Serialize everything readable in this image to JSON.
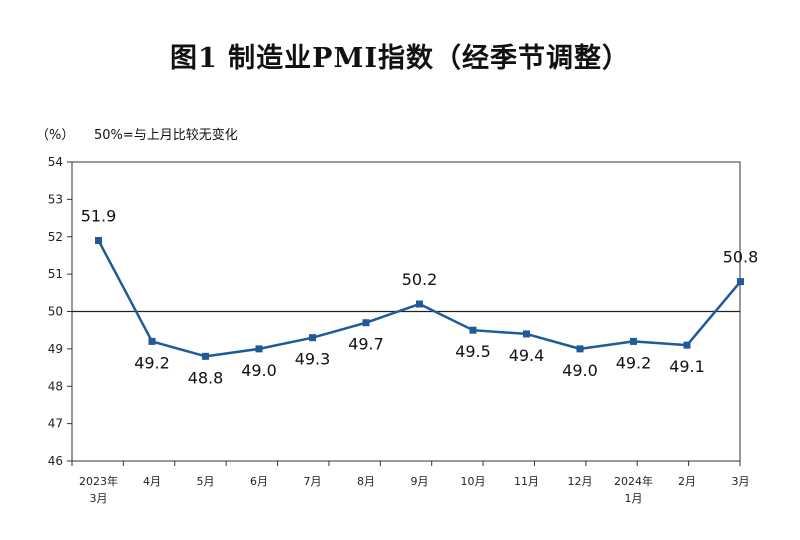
{
  "chart_data": {
    "type": "line",
    "title": "图1  制造业PMI指数（经季节调整）",
    "unit_label": "（%）",
    "annotation": "50%=与上月比较无变化",
    "x_labels": [
      [
        "2023年",
        "3月"
      ],
      [
        "4月"
      ],
      [
        "5月"
      ],
      [
        "6月"
      ],
      [
        "7月"
      ],
      [
        "8月"
      ],
      [
        "9月"
      ],
      [
        "10月"
      ],
      [
        "11月"
      ],
      [
        "12月"
      ],
      [
        "2024年",
        "1月"
      ],
      [
        "2月"
      ],
      [
        "3月"
      ]
    ],
    "values": [
      51.9,
      49.2,
      48.8,
      49.0,
      49.3,
      49.7,
      50.2,
      49.5,
      49.4,
      49.0,
      49.2,
      49.1,
      50.8
    ],
    "data_labels": [
      "51.9",
      "49.2",
      "48.8",
      "49.0",
      "49.3",
      "49.7",
      "50.2",
      "49.5",
      "49.4",
      "49.0",
      "49.2",
      "49.1",
      "50.8"
    ],
    "ylim": [
      46,
      54
    ],
    "yticks": [
      "46",
      "47",
      "48",
      "49",
      "50",
      "51",
      "52",
      "53",
      "54"
    ],
    "reference_line": 50,
    "colors": {
      "series": "#1f5a99",
      "axis": "#333333",
      "reference": "#222222"
    }
  }
}
